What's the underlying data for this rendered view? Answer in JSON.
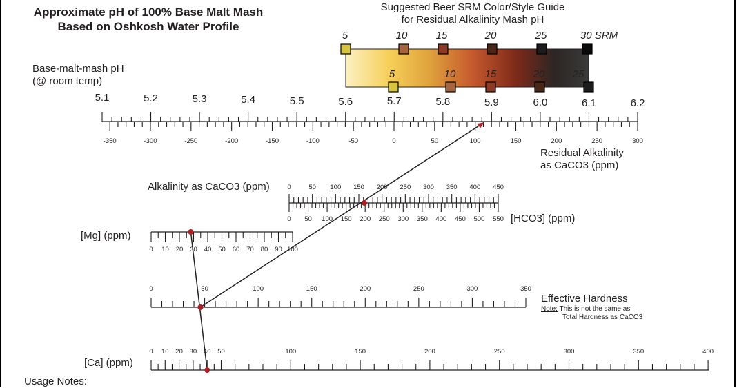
{
  "title": {
    "line1": "Approximate pH of 100% Base Malt Mash",
    "line2": "Based on Oshkosh Water Profile"
  },
  "srm_guide": {
    "line1": "Suggested Beer SRM Color/Style Guide",
    "line2": "for Residual Alkalinity Mash pH",
    "top_labels": [
      "5",
      "10",
      "15",
      "20",
      "25",
      "30 SRM"
    ],
    "bottom_labels": [
      "5",
      "10",
      "15",
      "20",
      "25"
    ],
    "swatch_colors": {
      "5": "#d7c33c",
      "10": "#a6653c",
      "15": "#8d3a24",
      "20": "#4a2616",
      "25": "#1c1c1c",
      "30": "#0a0a0a"
    },
    "gradient_colors": [
      "#fbf1c2",
      "#f6cf58",
      "#e0a43d",
      "#c65a2e",
      "#7e2a19",
      "#2c2624",
      "#3a3a3a"
    ]
  },
  "ph_scale": {
    "label_line1": "Base-malt-mash pH",
    "label_line2": "(@ room temp)",
    "ticks": [
      "5.1",
      "5.2",
      "5.3",
      "5.4",
      "5.5",
      "5.6",
      "5.7",
      "5.8",
      "5.9",
      "6.0",
      "6.1",
      "6.2"
    ]
  },
  "ra_scale": {
    "label_line1": "Residual Alkalinity",
    "label_line2": "as CaCO3 (ppm)",
    "ticks": [
      "-350",
      "-300",
      "-250",
      "-200",
      "-150",
      "-100",
      "-50",
      "0",
      "50",
      "100",
      "150",
      "200",
      "250",
      "300"
    ]
  },
  "alkalinity_scale": {
    "label": "Alkalinity as CaCO3 (ppm)",
    "ticks": [
      "0",
      "50",
      "100",
      "150",
      "200",
      "250",
      "300",
      "350",
      "400",
      "450"
    ]
  },
  "hco3_scale": {
    "label": "[HCO3] (ppm)",
    "ticks": [
      "0",
      "50",
      "100",
      "150",
      "200",
      "250",
      "300",
      "350",
      "400",
      "450",
      "500",
      "550"
    ]
  },
  "mg_scale": {
    "label": "[Mg] (ppm)",
    "ticks": [
      "0",
      "10",
      "20",
      "30",
      "40",
      "50",
      "60",
      "70",
      "80",
      "90",
      "100"
    ]
  },
  "hardness_scale": {
    "label": "Effective Hardness",
    "note_prefix": "Note:",
    "note_line1": " This is not the same as",
    "note_line2": "Total Hardness as CaCO3",
    "ticks": [
      "0",
      "50",
      "100",
      "150",
      "200",
      "250",
      "300",
      "350"
    ]
  },
  "ca_scale": {
    "label": "[Ca] (ppm)",
    "ticks": [
      "0",
      "10",
      "20",
      "30",
      "40",
      "50",
      "100",
      "150",
      "200",
      "250",
      "300",
      "350",
      "400"
    ]
  },
  "readings": {
    "ca": 40,
    "mg": 28,
    "effective_hardness": 46,
    "alkalinity_caco3": 162,
    "residual_alkalinity": 110,
    "mash_ph": 5.92
  },
  "line_color": "#231f20",
  "marker_color": "#b01e23",
  "usage_notes": "Usage Notes:"
}
